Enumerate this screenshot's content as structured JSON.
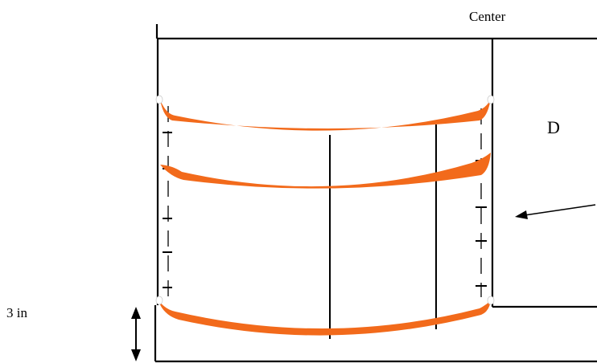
{
  "labels": {
    "center": "Center",
    "d": "D",
    "dimension": "3 in"
  },
  "colors": {
    "line": "#000000",
    "arc": "#f26a1b"
  },
  "icons": {
    "arrow": "arrow-icon",
    "dimension_arrow": "double-arrow-icon"
  }
}
